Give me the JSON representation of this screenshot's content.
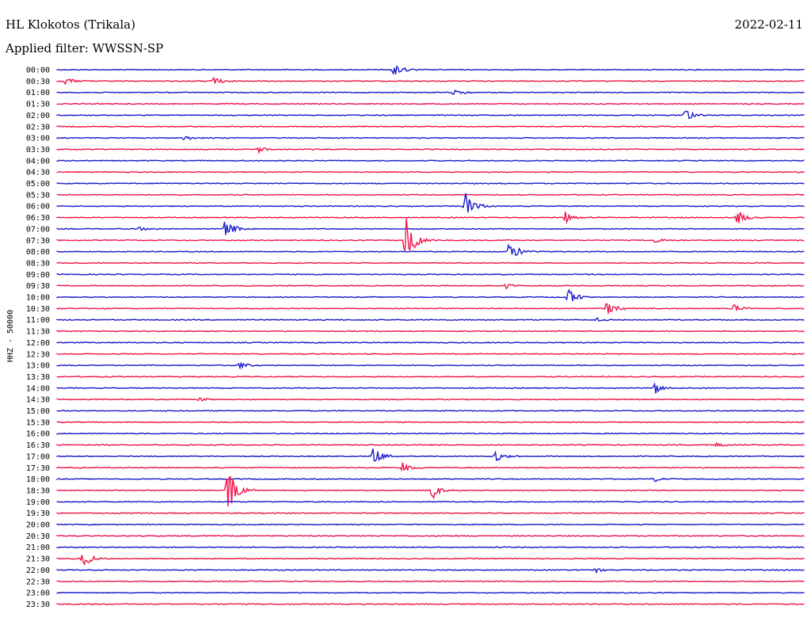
{
  "header": {
    "station": "HL Klokotos (Trikala)",
    "date": "2022-02-11",
    "filter": "Applied filter: WWSSN-SP"
  },
  "chart_data": {
    "type": "line",
    "title": "HL Klokotos (Trikala)",
    "ylabel": "HHZ - 50000",
    "colors": {
      "even": "#1a1acc",
      "odd": "#f0144a"
    },
    "rows": [
      "00:00",
      "00:30",
      "01:00",
      "01:30",
      "02:00",
      "02:30",
      "03:00",
      "03:30",
      "04:00",
      "04:30",
      "05:00",
      "05:30",
      "06:00",
      "06:30",
      "07:00",
      "07:30",
      "08:00",
      "08:30",
      "09:00",
      "09:30",
      "10:00",
      "10:30",
      "11:00",
      "11:30",
      "12:00",
      "12:30",
      "13:00",
      "13:30",
      "14:00",
      "14:30",
      "15:00",
      "15:30",
      "16:00",
      "16:30",
      "17:00",
      "17:30",
      "18:00",
      "18:30",
      "19:00",
      "19:30",
      "20:00",
      "20:30",
      "21:00",
      "21:30",
      "22:00",
      "22:30",
      "23:00",
      "23:30"
    ],
    "events": [
      {
        "row": 0,
        "t": 0.45,
        "amp": 8
      },
      {
        "row": 1,
        "t": 0.012,
        "amp": 5
      },
      {
        "row": 1,
        "t": 0.21,
        "amp": 5
      },
      {
        "row": 2,
        "t": 0.53,
        "amp": 4
      },
      {
        "row": 4,
        "t": 0.84,
        "amp": 9
      },
      {
        "row": 6,
        "t": 0.17,
        "amp": 3
      },
      {
        "row": 7,
        "t": 0.27,
        "amp": 4
      },
      {
        "row": 12,
        "t": 0.546,
        "amp": 20
      },
      {
        "row": 13,
        "t": 0.68,
        "amp": 8
      },
      {
        "row": 13,
        "t": 0.91,
        "amp": 10
      },
      {
        "row": 14,
        "t": 0.225,
        "amp": 14
      },
      {
        "row": 14,
        "t": 0.11,
        "amp": 3
      },
      {
        "row": 15,
        "t": 0.466,
        "amp": 34
      },
      {
        "row": 15,
        "t": 0.8,
        "amp": 3
      },
      {
        "row": 16,
        "t": 0.605,
        "amp": 14
      },
      {
        "row": 19,
        "t": 0.6,
        "amp": 4
      },
      {
        "row": 20,
        "t": 0.684,
        "amp": 10
      },
      {
        "row": 21,
        "t": 0.735,
        "amp": 10
      },
      {
        "row": 21,
        "t": 0.905,
        "amp": 5
      },
      {
        "row": 22,
        "t": 0.72,
        "amp": 3
      },
      {
        "row": 26,
        "t": 0.245,
        "amp": 5
      },
      {
        "row": 28,
        "t": 0.8,
        "amp": 7
      },
      {
        "row": 29,
        "t": 0.19,
        "amp": 3
      },
      {
        "row": 33,
        "t": 0.88,
        "amp": 3
      },
      {
        "row": 34,
        "t": 0.423,
        "amp": 14
      },
      {
        "row": 34,
        "t": 0.587,
        "amp": 7
      },
      {
        "row": 35,
        "t": 0.462,
        "amp": 8
      },
      {
        "row": 36,
        "t": 0.8,
        "amp": 3
      },
      {
        "row": 37,
        "t": 0.228,
        "amp": 34
      },
      {
        "row": 37,
        "t": 0.502,
        "amp": 13
      },
      {
        "row": 43,
        "t": 0.034,
        "amp": 12
      },
      {
        "row": 44,
        "t": 0.72,
        "amp": 3
      }
    ]
  }
}
